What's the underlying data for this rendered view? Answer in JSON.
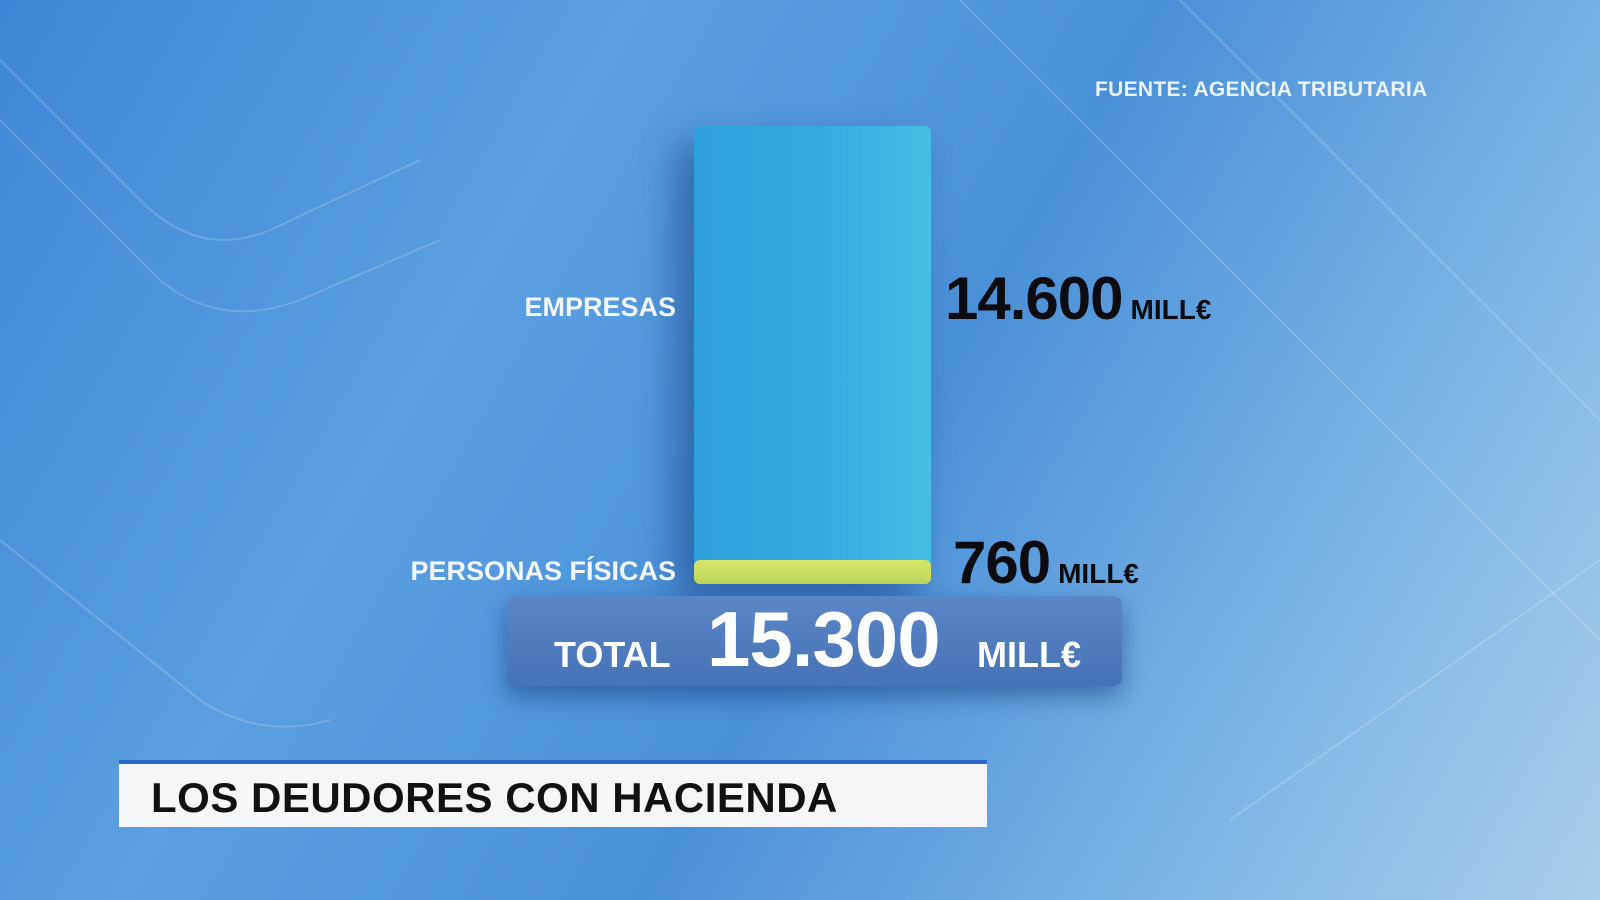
{
  "source": "FUENTE: AGENCIA TRIBUTARIA",
  "caption": "LOS DEUDORES CON HACIENDA",
  "colors": {
    "empresas": "#35a8e0",
    "personas": "#cfe066",
    "total_box": "#4f7cbf"
  },
  "chart_data": {
    "type": "bar",
    "stacked": true,
    "categories": [
      "EMPRESAS",
      "PERSONAS FÍSICAS"
    ],
    "values": [
      14600,
      760
    ],
    "value_labels": [
      "14.600",
      "760"
    ],
    "unit": "MILL€",
    "total_label": "TOTAL",
    "total_value": "15.300",
    "total": 15300
  }
}
